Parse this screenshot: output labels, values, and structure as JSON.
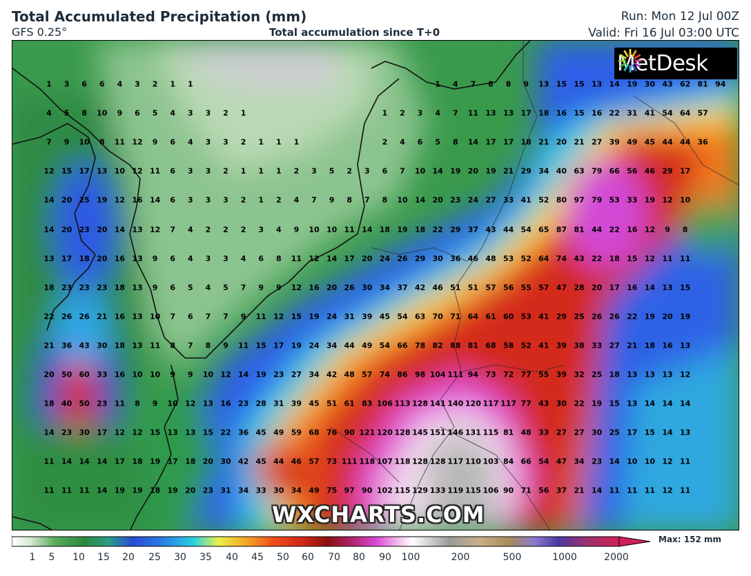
{
  "header": {
    "title": "Total Accumulated Precipitation (mm)",
    "model": "GFS 0.25°",
    "subtitle": "Total accumulation since T+0",
    "run": "Run: Mon 12 Jul 00Z",
    "valid": "Valid: Fri 16 Jul 03:00 UTC"
  },
  "logo": {
    "text": "MetDesk"
  },
  "watermark": "WXCHARTS.COM",
  "colorbar": {
    "tick_labels": [
      "1",
      "5",
      "10",
      "15",
      "20",
      "25",
      "30",
      "35",
      "40",
      "45",
      "50",
      "60",
      "70",
      "80",
      "90",
      "100",
      "200",
      "500",
      "1000",
      "2000"
    ],
    "max_label": "Max: 152 mm"
  },
  "values": [
    [
      "1",
      "3",
      "6",
      "6",
      "4",
      "3",
      "2",
      "1",
      "1",
      "",
      "",
      "",
      "",
      "",
      "",
      "",
      "",
      "",
      "",
      "",
      "",
      "",
      "1",
      "4",
      "7",
      "8",
      "8",
      "9",
      "13",
      "15",
      "15",
      "13",
      "14",
      "19",
      "30",
      "43",
      "62",
      "81",
      "94"
    ],
    [
      "4",
      "5",
      "8",
      "10",
      "9",
      "6",
      "5",
      "4",
      "3",
      "3",
      "2",
      "1",
      "",
      "",
      "",
      "",
      "",
      "",
      "",
      "1",
      "2",
      "3",
      "4",
      "7",
      "11",
      "13",
      "13",
      "17",
      "18",
      "16",
      "15",
      "16",
      "22",
      "31",
      "41",
      "54",
      "64",
      "57"
    ],
    [
      "7",
      "9",
      "10",
      "8",
      "11",
      "12",
      "9",
      "6",
      "4",
      "3",
      "3",
      "2",
      "1",
      "1",
      "1",
      "",
      "",
      "",
      "",
      "2",
      "4",
      "6",
      "5",
      "8",
      "14",
      "17",
      "17",
      "18",
      "21",
      "20",
      "21",
      "27",
      "39",
      "49",
      "45",
      "44",
      "44",
      "36"
    ],
    [
      "12",
      "15",
      "17",
      "13",
      "10",
      "12",
      "11",
      "6",
      "3",
      "3",
      "2",
      "1",
      "1",
      "1",
      "2",
      "3",
      "5",
      "2",
      "3",
      "6",
      "7",
      "10",
      "14",
      "19",
      "20",
      "19",
      "21",
      "29",
      "34",
      "40",
      "63",
      "79",
      "66",
      "56",
      "46",
      "29",
      "17"
    ],
    [
      "14",
      "20",
      "25",
      "19",
      "12",
      "16",
      "14",
      "6",
      "3",
      "3",
      "3",
      "2",
      "1",
      "2",
      "4",
      "7",
      "9",
      "8",
      "7",
      "8",
      "10",
      "14",
      "20",
      "23",
      "24",
      "27",
      "33",
      "41",
      "52",
      "80",
      "97",
      "79",
      "53",
      "33",
      "19",
      "12",
      "10"
    ],
    [
      "14",
      "20",
      "23",
      "20",
      "14",
      "13",
      "12",
      "7",
      "4",
      "2",
      "2",
      "2",
      "3",
      "4",
      "9",
      "10",
      "10",
      "11",
      "14",
      "18",
      "19",
      "18",
      "22",
      "29",
      "37",
      "43",
      "44",
      "54",
      "65",
      "87",
      "81",
      "44",
      "22",
      "16",
      "12",
      "9",
      "8"
    ],
    [
      "13",
      "17",
      "18",
      "20",
      "16",
      "13",
      "9",
      "6",
      "4",
      "3",
      "3",
      "4",
      "6",
      "8",
      "11",
      "12",
      "14",
      "17",
      "20",
      "24",
      "26",
      "29",
      "30",
      "36",
      "46",
      "48",
      "53",
      "52",
      "64",
      "74",
      "43",
      "22",
      "18",
      "15",
      "12",
      "11",
      "11"
    ],
    [
      "18",
      "23",
      "23",
      "23",
      "18",
      "13",
      "9",
      "6",
      "5",
      "4",
      "5",
      "7",
      "9",
      "9",
      "12",
      "16",
      "20",
      "26",
      "30",
      "34",
      "37",
      "42",
      "46",
      "51",
      "51",
      "57",
      "56",
      "55",
      "57",
      "47",
      "28",
      "20",
      "17",
      "16",
      "14",
      "13",
      "15"
    ],
    [
      "22",
      "26",
      "26",
      "21",
      "16",
      "13",
      "10",
      "7",
      "6",
      "7",
      "7",
      "9",
      "11",
      "12",
      "15",
      "19",
      "24",
      "31",
      "39",
      "45",
      "54",
      "63",
      "70",
      "71",
      "64",
      "61",
      "60",
      "53",
      "41",
      "29",
      "25",
      "26",
      "26",
      "22",
      "19",
      "20",
      "19"
    ],
    [
      "21",
      "36",
      "43",
      "30",
      "18",
      "13",
      "11",
      "8",
      "7",
      "8",
      "9",
      "11",
      "15",
      "17",
      "19",
      "24",
      "34",
      "44",
      "49",
      "54",
      "66",
      "78",
      "82",
      "88",
      "81",
      "68",
      "58",
      "52",
      "41",
      "39",
      "38",
      "33",
      "27",
      "21",
      "18",
      "16",
      "13"
    ],
    [
      "20",
      "50",
      "60",
      "33",
      "16",
      "10",
      "10",
      "9",
      "9",
      "10",
      "12",
      "14",
      "19",
      "23",
      "27",
      "34",
      "42",
      "48",
      "57",
      "74",
      "86",
      "98",
      "104",
      "111",
      "94",
      "73",
      "72",
      "77",
      "55",
      "39",
      "32",
      "25",
      "18",
      "13",
      "13",
      "13",
      "12"
    ],
    [
      "18",
      "40",
      "50",
      "23",
      "11",
      "8",
      "9",
      "10",
      "12",
      "13",
      "16",
      "23",
      "28",
      "31",
      "39",
      "45",
      "51",
      "61",
      "83",
      "106",
      "113",
      "128",
      "141",
      "140",
      "120",
      "117",
      "117",
      "77",
      "43",
      "30",
      "22",
      "19",
      "15",
      "13",
      "14",
      "14",
      "14"
    ],
    [
      "14",
      "23",
      "30",
      "17",
      "12",
      "12",
      "15",
      "13",
      "13",
      "15",
      "22",
      "36",
      "45",
      "49",
      "59",
      "68",
      "76",
      "90",
      "121",
      "120",
      "128",
      "145",
      "151",
      "146",
      "131",
      "115",
      "81",
      "48",
      "33",
      "27",
      "27",
      "30",
      "25",
      "17",
      "15",
      "14",
      "13"
    ],
    [
      "11",
      "14",
      "14",
      "14",
      "17",
      "18",
      "19",
      "17",
      "18",
      "20",
      "30",
      "42",
      "45",
      "44",
      "46",
      "57",
      "73",
      "111",
      "118",
      "107",
      "118",
      "128",
      "128",
      "117",
      "110",
      "103",
      "84",
      "66",
      "54",
      "47",
      "34",
      "23",
      "14",
      "10",
      "10",
      "12",
      "11"
    ],
    [
      "11",
      "11",
      "11",
      "14",
      "19",
      "19",
      "18",
      "19",
      "20",
      "23",
      "31",
      "34",
      "33",
      "30",
      "34",
      "49",
      "75",
      "97",
      "90",
      "102",
      "115",
      "129",
      "133",
      "119",
      "115",
      "106",
      "90",
      "71",
      "56",
      "37",
      "21",
      "14",
      "11",
      "11",
      "11",
      "12",
      "11"
    ]
  ]
}
